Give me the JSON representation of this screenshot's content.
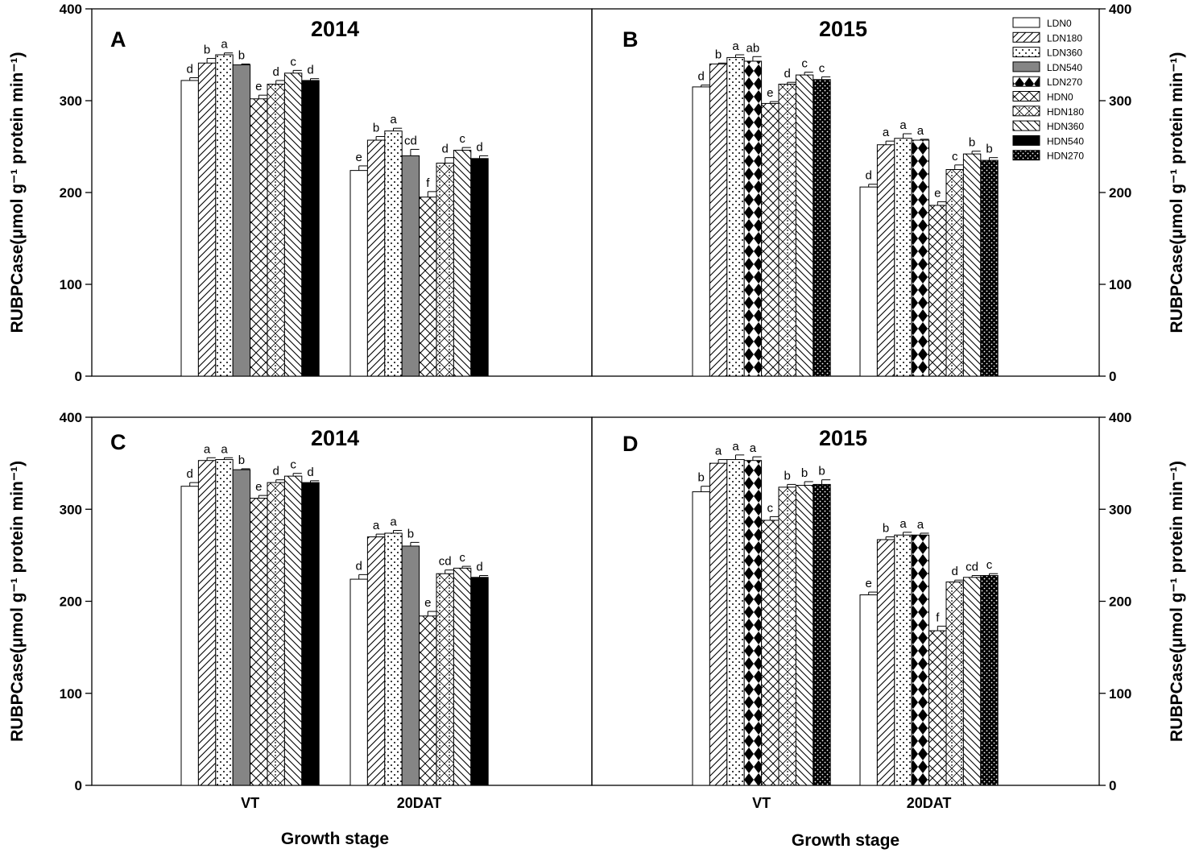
{
  "series_names": [
    "LDN0",
    "LDN180",
    "LDN360",
    "LDN540",
    "LDN270",
    "HDN0",
    "HDN180",
    "HDN360",
    "HDN540",
    "HDN270"
  ],
  "series_patterns": [
    "none",
    "diag-fwd",
    "dots-sparse",
    "gray",
    "diamond",
    "cross",
    "cross-dots",
    "diag-back",
    "black",
    "dots-dense"
  ],
  "colors": {
    "gray": "#858585",
    "black": "#000000"
  },
  "shared_xlabel": "Growth stage",
  "chart_data": [
    {
      "type": "bar",
      "letter": "A",
      "title": "2014",
      "ylabel": "RUBPCase(μmol g⁻¹ protein min⁻¹)",
      "ylim": [
        0,
        400
      ],
      "yticks": [
        0,
        100,
        200,
        300,
        400
      ],
      "yaxis_side": "left",
      "categories": [
        "VT",
        "20DAT"
      ],
      "series": [
        {
          "name": "LDN0",
          "values": [
            322,
            224
          ],
          "errors": [
            3,
            5
          ],
          "letters": [
            "d",
            "e"
          ]
        },
        {
          "name": "LDN180",
          "values": [
            341,
            257
          ],
          "errors": [
            5,
            4
          ],
          "letters": [
            "b",
            "b"
          ]
        },
        {
          "name": "LDN360",
          "values": [
            350,
            267
          ],
          "errors": [
            2,
            3
          ],
          "letters": [
            "a",
            "a"
          ]
        },
        {
          "name": "LDN540",
          "values": [
            339,
            240
          ],
          "errors": [
            1,
            7
          ],
          "letters": [
            "b",
            "cd"
          ]
        },
        {
          "name": "HDN0",
          "values": [
            302,
            195
          ],
          "errors": [
            4,
            6
          ],
          "letters": [
            "e",
            "f"
          ]
        },
        {
          "name": "HDN180",
          "values": [
            318,
            232
          ],
          "errors": [
            4,
            6
          ],
          "letters": [
            "d",
            "d"
          ]
        },
        {
          "name": "HDN360",
          "values": [
            330,
            246
          ],
          "errors": [
            3,
            3
          ],
          "letters": [
            "c",
            "c"
          ]
        },
        {
          "name": "HDN540",
          "values": [
            322,
            237
          ],
          "errors": [
            2,
            3
          ],
          "letters": [
            "d",
            "d"
          ]
        }
      ]
    },
    {
      "type": "bar",
      "letter": "B",
      "title": "2015",
      "ylabel": "RUBPCase(μmol g⁻¹ protein min⁻¹)",
      "ylim": [
        0,
        400
      ],
      "yticks": [
        0,
        100,
        200,
        300,
        400
      ],
      "yaxis_side": "right",
      "categories": [
        "VT",
        "20DAT"
      ],
      "series": [
        {
          "name": "LDN0",
          "values": [
            315,
            206
          ],
          "errors": [
            2,
            3
          ],
          "letters": [
            "d",
            "d"
          ]
        },
        {
          "name": "LDN180",
          "values": [
            340,
            252
          ],
          "errors": [
            1,
            4
          ],
          "letters": [
            "b",
            "a"
          ]
        },
        {
          "name": "LDN360",
          "values": [
            347,
            259
          ],
          "errors": [
            3,
            5
          ],
          "letters": [
            "a",
            "a"
          ]
        },
        {
          "name": "LDN270",
          "values": [
            343,
            257
          ],
          "errors": [
            5,
            1
          ],
          "letters": [
            "ab",
            "a"
          ]
        },
        {
          "name": "HDN0",
          "values": [
            297,
            186
          ],
          "errors": [
            2,
            4
          ],
          "letters": [
            "e",
            "e"
          ]
        },
        {
          "name": "HDN180",
          "values": [
            318,
            225
          ],
          "errors": [
            2,
            5
          ],
          "letters": [
            "d",
            "c"
          ]
        },
        {
          "name": "HDN360",
          "values": [
            328,
            242
          ],
          "errors": [
            3,
            3
          ],
          "letters": [
            "c",
            "b"
          ]
        },
        {
          "name": "HDN270",
          "values": [
            323,
            235
          ],
          "errors": [
            3,
            3
          ],
          "letters": [
            "c",
            "b"
          ]
        }
      ]
    },
    {
      "type": "bar",
      "letter": "C",
      "title": "2014",
      "ylabel": "RUBPCase(μmol g⁻¹ protein min⁻¹)",
      "ylim": [
        0,
        400
      ],
      "yticks": [
        0,
        100,
        200,
        300,
        400
      ],
      "yaxis_side": "left",
      "xlabel": "Growth stage",
      "categories": [
        "VT",
        "20DAT"
      ],
      "series": [
        {
          "name": "LDN0",
          "values": [
            325,
            224
          ],
          "errors": [
            4,
            5
          ],
          "letters": [
            "d",
            "d"
          ]
        },
        {
          "name": "LDN180",
          "values": [
            353,
            270
          ],
          "errors": [
            3,
            3
          ],
          "letters": [
            "a",
            "a"
          ]
        },
        {
          "name": "LDN360",
          "values": [
            354,
            274
          ],
          "errors": [
            2,
            3
          ],
          "letters": [
            "a",
            "a"
          ]
        },
        {
          "name": "LDN540",
          "values": [
            343,
            260
          ],
          "errors": [
            1,
            4
          ],
          "letters": [
            "b",
            "b"
          ]
        },
        {
          "name": "HDN0",
          "values": [
            312,
            184
          ],
          "errors": [
            3,
            5
          ],
          "letters": [
            "e",
            "e"
          ]
        },
        {
          "name": "HDN180",
          "values": [
            329,
            230
          ],
          "errors": [
            3,
            4
          ],
          "letters": [
            "d",
            "cd"
          ]
        },
        {
          "name": "HDN360",
          "values": [
            336,
            236
          ],
          "errors": [
            3,
            2
          ],
          "letters": [
            "c",
            "c"
          ]
        },
        {
          "name": "HDN540",
          "values": [
            329,
            226
          ],
          "errors": [
            2,
            2
          ],
          "letters": [
            "d",
            "d"
          ]
        }
      ]
    },
    {
      "type": "bar",
      "letter": "D",
      "title": "2015",
      "ylabel": "RUBPCase(μmol g⁻¹ protein min⁻¹)",
      "ylim": [
        0,
        400
      ],
      "yticks": [
        0,
        100,
        200,
        300,
        400
      ],
      "yaxis_side": "right",
      "xlabel": "Growth stage",
      "categories": [
        "VT",
        "20DAT"
      ],
      "series": [
        {
          "name": "LDN0",
          "values": [
            319,
            207
          ],
          "errors": [
            6,
            3
          ],
          "letters": [
            "b",
            "e"
          ]
        },
        {
          "name": "LDN180",
          "values": [
            350,
            267
          ],
          "errors": [
            4,
            3
          ],
          "letters": [
            "a",
            "b"
          ]
        },
        {
          "name": "LDN360",
          "values": [
            354,
            272
          ],
          "errors": [
            5,
            3
          ],
          "letters": [
            "a",
            "a"
          ]
        },
        {
          "name": "LDN270",
          "values": [
            353,
            272
          ],
          "errors": [
            4,
            2
          ],
          "letters": [
            "a",
            "a"
          ]
        },
        {
          "name": "HDN0",
          "values": [
            288,
            168
          ],
          "errors": [
            4,
            5
          ],
          "letters": [
            "c",
            "f"
          ]
        },
        {
          "name": "HDN180",
          "values": [
            324,
            221
          ],
          "errors": [
            3,
            2
          ],
          "letters": [
            "b",
            "d"
          ]
        },
        {
          "name": "HDN360",
          "values": [
            326,
            226
          ],
          "errors": [
            4,
            2
          ],
          "letters": [
            "b",
            "cd"
          ]
        },
        {
          "name": "HDN270",
          "values": [
            327,
            228
          ],
          "errors": [
            5,
            2
          ],
          "letters": [
            "b",
            "c"
          ]
        }
      ]
    }
  ]
}
